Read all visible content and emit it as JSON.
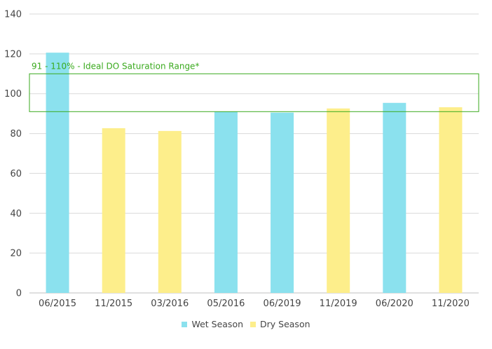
{
  "chart_data": {
    "type": "bar",
    "categories": [
      "06/2015",
      "11/2015",
      "03/2016",
      "05/2016",
      "06/2019",
      "11/2019",
      "06/2020",
      "11/2020"
    ],
    "values": [
      120.6,
      82.7,
      81.3,
      91.0,
      90.5,
      92.6,
      95.4,
      93.2
    ],
    "season": [
      "wet",
      "dry",
      "dry",
      "wet",
      "wet",
      "dry",
      "wet",
      "dry"
    ],
    "ylim": [
      0,
      140
    ],
    "yticks": [
      0,
      20,
      40,
      60,
      80,
      100,
      120,
      140
    ],
    "grid": true,
    "legend_position": "bottom",
    "series": [
      {
        "key": "wet",
        "name": "Wet Season",
        "color": "#8be1ee"
      },
      {
        "key": "dry",
        "name": "Dry Season",
        "color": "#fdee8b"
      }
    ],
    "range_band": {
      "low": 91,
      "high": 110,
      "label": "91 - 110% - Ideal DO Saturation Range*",
      "color": "#3aaa1e"
    }
  }
}
